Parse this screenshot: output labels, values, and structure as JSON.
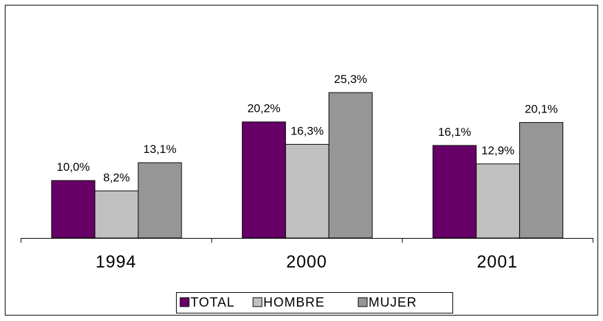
{
  "chart_data": {
    "type": "bar",
    "categories": [
      "1994",
      "2000",
      "2001"
    ],
    "series": [
      {
        "name": "TOTAL",
        "color": "#660066",
        "values": [
          10.0,
          20.2,
          16.1
        ],
        "value_labels": [
          "10,0%",
          "20,2%",
          "16,1%"
        ]
      },
      {
        "name": "HOMBRE",
        "color": "#c0c0c0",
        "values": [
          8.2,
          16.3,
          12.9
        ],
        "value_labels": [
          "8,2%",
          "16,3%",
          "12,9%"
        ]
      },
      {
        "name": "MUJER",
        "color": "#969696",
        "values": [
          13.1,
          25.3,
          20.1
        ],
        "value_labels": [
          "13,1%",
          "25,3%",
          "20,1%"
        ]
      }
    ],
    "legend": "bottom"
  }
}
